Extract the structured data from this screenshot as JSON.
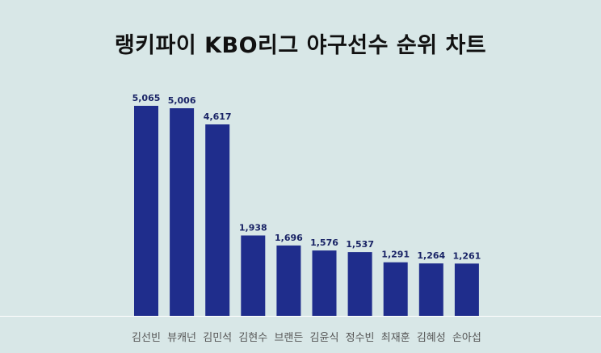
{
  "chart_data": {
    "type": "bar",
    "title": "랭키파이 KBO리그 야구선수 순위 차트",
    "xlabel": "",
    "ylabel": "",
    "categories": [
      "김선빈",
      "뷰캐넌",
      "김민석",
      "김현수",
      "브랜든",
      "김윤식",
      "정수빈",
      "최재훈",
      "김혜성",
      "손아섭"
    ],
    "values": [
      5065,
      5006,
      4617,
      1938,
      1696,
      1576,
      1537,
      1291,
      1264,
      1261
    ],
    "value_labels": [
      "5,065",
      "5,006",
      "4,617",
      "1,938",
      "1,696",
      "1,576",
      "1,537",
      "1,291",
      "1,264",
      "1,261"
    ],
    "ylim": [
      0,
      5065
    ],
    "grid": false,
    "legend": "none",
    "colors": {
      "bar": "#1f2d8c",
      "value_label": "#1a2466",
      "category_label": "#555555",
      "baseline": "#ffffff",
      "background": "#d8e7e7"
    }
  }
}
